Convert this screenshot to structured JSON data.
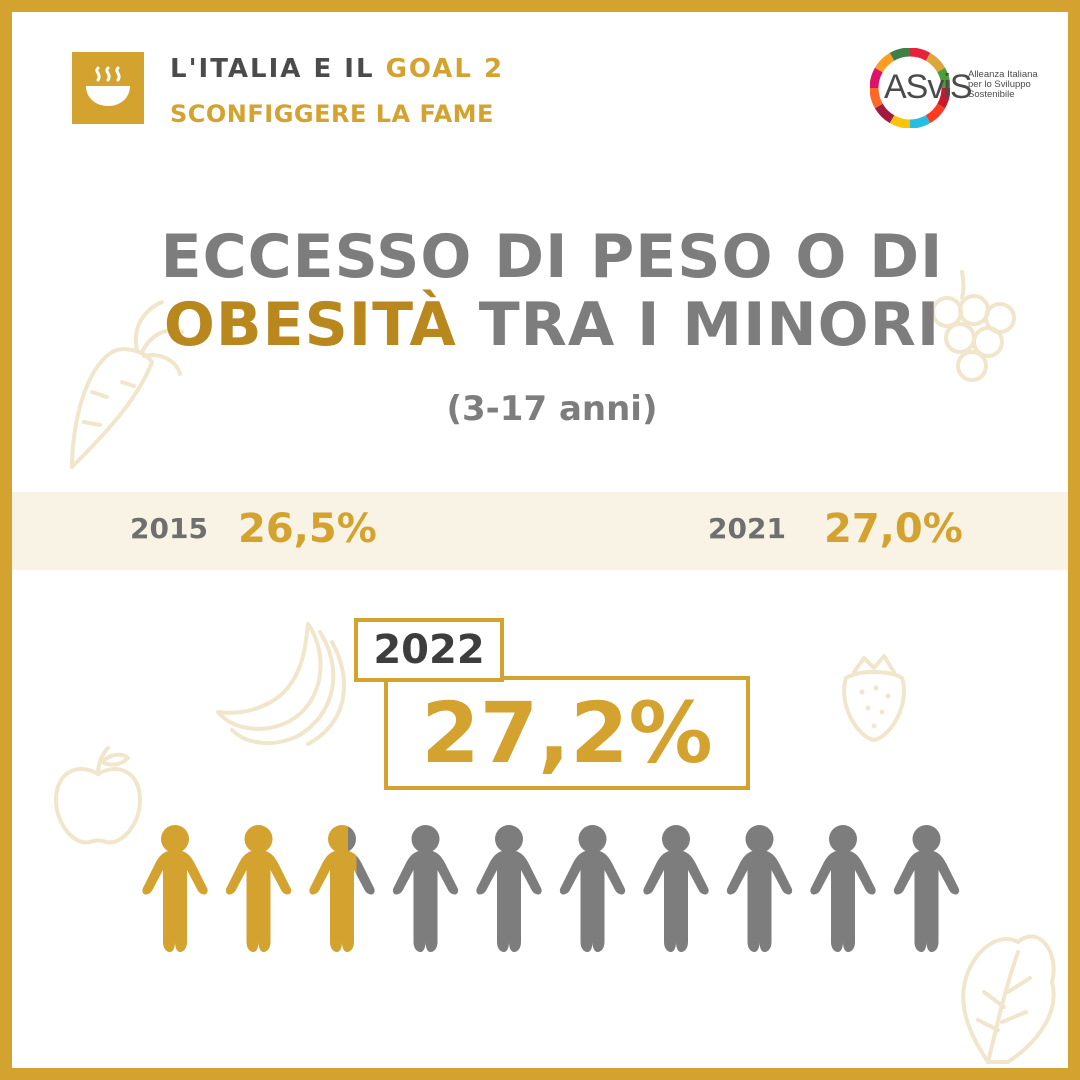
{
  "header": {
    "line1_prefix": "L'ITALIA E IL ",
    "line1_accent": "GOAL 2",
    "line2": "SCONFIGGERE LA FAME",
    "goal_icon": "bowl-icon"
  },
  "logo": {
    "text": "ASviS",
    "subtitle": "Alleanza Italiana per lo Sviluppo Sostenibile"
  },
  "title": {
    "line1": "ECCESSO DI PESO O DI",
    "line2_accent": "OBESITÀ",
    "line2_rest": " TRA I MINORI",
    "subtitle": "(3-17 anni)"
  },
  "stats": [
    {
      "year": "2015",
      "value": "26,5%"
    },
    {
      "year": "2021",
      "value": "27,0%"
    }
  ],
  "highlight": {
    "year": "2022",
    "value": "27,2%"
  },
  "pictogram": {
    "total": 10,
    "filled_fraction": 0.272
  },
  "colors": {
    "gold": "#D4A22E",
    "dark_gold": "#B8871E",
    "grey": "#7d7d7d",
    "band": "#F8F3E5",
    "decoration": "#F1E6CC"
  },
  "decorations": [
    "carrot-icon",
    "grapes-icon",
    "banana-icon",
    "strawberry-icon",
    "apple-icon",
    "lettuce-icon"
  ]
}
